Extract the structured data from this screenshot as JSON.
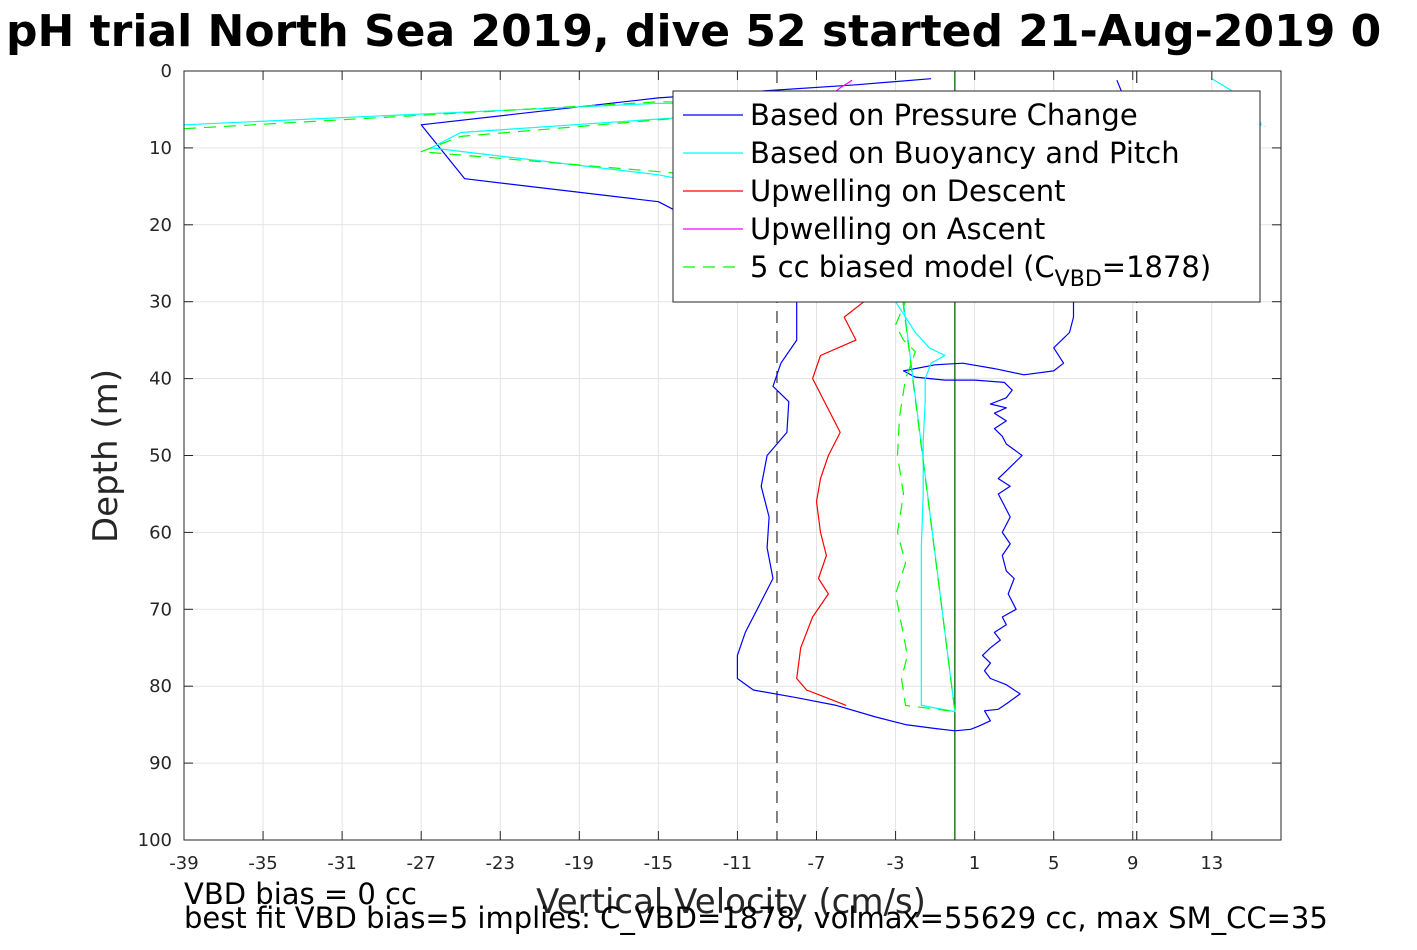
{
  "chart_data": {
    "type": "line",
    "title": "pH trial North Sea 2019, dive 52 started 21-Aug-2019 0",
    "xlabel": "Vertical Velocity (cm/s)",
    "ylabel": "Depth (m)",
    "xlim": [
      -39,
      16.5
    ],
    "ylim": [
      0,
      100
    ],
    "y_reversed": true,
    "grid": true,
    "xticks": [
      -39,
      -35,
      -31,
      -27,
      -23,
      -19,
      -15,
      -11,
      -7,
      -3,
      1,
      5,
      9,
      13
    ],
    "yticks": [
      0,
      10,
      20,
      30,
      40,
      50,
      60,
      70,
      80,
      90,
      100
    ],
    "legend_position": "top-right",
    "colors": {
      "pressure": "#0000ff",
      "buoyancy": "#00ffff",
      "descent": "#ff0000",
      "ascent": "#ff00ff",
      "model": "#00ff00",
      "zero_line": "#006400",
      "limit_lines": "#404040"
    },
    "series": [
      {
        "name": "Based on Pressure Change",
        "key": "pressure",
        "style": "solid",
        "points": [
          [
            -1.2,
            1.0
          ],
          [
            -5.0,
            1.8
          ],
          [
            -15.0,
            3.5
          ],
          [
            -27.0,
            7.0
          ],
          [
            -24.8,
            14.0
          ],
          [
            -15.0,
            17.0
          ],
          [
            -9.0,
            25.0
          ],
          [
            -8.0,
            30.0
          ],
          [
            -8.0,
            35.0
          ],
          [
            -8.8,
            38.0
          ],
          [
            -9.2,
            41.0
          ],
          [
            -8.4,
            43.0
          ],
          [
            -8.5,
            47.0
          ],
          [
            -9.5,
            50.0
          ],
          [
            -9.8,
            54.0
          ],
          [
            -9.4,
            58.0
          ],
          [
            -9.5,
            62.0
          ],
          [
            -9.2,
            66.0
          ],
          [
            -10.0,
            70.0
          ],
          [
            -10.6,
            73.0
          ],
          [
            -11.0,
            76.0
          ],
          [
            -11.0,
            79.0
          ],
          [
            -10.2,
            80.5
          ],
          [
            -8.0,
            81.5
          ],
          [
            -6.0,
            82.5
          ],
          [
            -4.0,
            84.0
          ],
          [
            -2.5,
            85.0
          ],
          [
            -1.0,
            85.5
          ],
          [
            0.0,
            85.8
          ],
          [
            0.8,
            85.6
          ],
          [
            1.2,
            85.2
          ],
          [
            1.8,
            84.5
          ],
          [
            1.5,
            83.2
          ],
          [
            2.2,
            83.0
          ],
          [
            2.6,
            82.3
          ],
          [
            3.3,
            81.0
          ],
          [
            2.6,
            79.8
          ],
          [
            1.8,
            79.0
          ],
          [
            1.5,
            78.0
          ],
          [
            1.8,
            77.0
          ],
          [
            1.4,
            76.0
          ],
          [
            1.8,
            75.0
          ],
          [
            2.3,
            74.0
          ],
          [
            2.0,
            73.0
          ],
          [
            2.6,
            72.0
          ],
          [
            2.4,
            71.0
          ],
          [
            3.1,
            70.0
          ],
          [
            2.7,
            68.0
          ],
          [
            3.0,
            66.0
          ],
          [
            2.6,
            65.0
          ],
          [
            2.4,
            63.0
          ],
          [
            2.8,
            61.5
          ],
          [
            2.4,
            60.0
          ],
          [
            2.8,
            58.0
          ],
          [
            2.4,
            56.0
          ],
          [
            2.2,
            55.0
          ],
          [
            2.8,
            54.0
          ],
          [
            2.2,
            53.0
          ],
          [
            2.6,
            52.0
          ],
          [
            3.0,
            51.0
          ],
          [
            3.4,
            50.0
          ],
          [
            2.6,
            48.5
          ],
          [
            2.4,
            47.5
          ],
          [
            2.0,
            46.5
          ],
          [
            2.6,
            45.5
          ],
          [
            2.0,
            44.5
          ],
          [
            2.6,
            43.8
          ],
          [
            1.8,
            43.3
          ],
          [
            2.6,
            42.5
          ],
          [
            2.9,
            41.5
          ],
          [
            2.5,
            40.5
          ],
          [
            1.0,
            40.2
          ],
          [
            -0.5,
            40.2
          ],
          [
            -2.0,
            39.8
          ],
          [
            -2.6,
            39.0
          ],
          [
            -1.0,
            38.2
          ],
          [
            0.4,
            38.0
          ],
          [
            2.0,
            38.7
          ],
          [
            3.5,
            39.5
          ],
          [
            5.0,
            39.0
          ],
          [
            5.5,
            38.0
          ],
          [
            5.0,
            36.0
          ],
          [
            5.8,
            34.0
          ],
          [
            6.0,
            32.0
          ],
          [
            6.0,
            30.0
          ],
          [
            6.4,
            28.0
          ],
          [
            6.8,
            25.0
          ],
          [
            7.3,
            20.0
          ],
          [
            8.0,
            15.0
          ],
          [
            8.7,
            10.0
          ],
          [
            8.8,
            5.0
          ],
          [
            8.2,
            1.2
          ]
        ]
      },
      {
        "name": "Based on Buoyancy and Pitch",
        "key": "buoyancy",
        "style": "solid",
        "points": [
          [
            -39.0,
            7.0
          ],
          [
            -15.0,
            4.2
          ],
          [
            -5.0,
            4.5
          ],
          [
            -25.0,
            8.0
          ],
          [
            -26.5,
            10.0
          ],
          [
            -15.0,
            13.5
          ],
          [
            -8.0,
            17.0
          ],
          [
            -5.0,
            20.0
          ],
          [
            -3.5,
            25.0
          ],
          [
            -3.0,
            30.0
          ],
          [
            -2.0,
            34.0
          ],
          [
            -1.3,
            36.0
          ],
          [
            -0.5,
            37.0
          ],
          [
            -1.2,
            38.0
          ],
          [
            -1.5,
            40.0
          ],
          [
            -1.5,
            43.0
          ],
          [
            -1.6,
            48.0
          ],
          [
            -1.6,
            55.0
          ],
          [
            -1.7,
            62.0
          ],
          [
            -1.7,
            70.0
          ],
          [
            -1.7,
            76.0
          ],
          [
            -1.7,
            82.5
          ],
          [
            0.0,
            83.3
          ],
          [
            -3.0,
            22.0
          ],
          [
            5.0,
            12.0
          ],
          [
            10.0,
            9.0
          ],
          [
            15.0,
            7.8
          ],
          [
            15.5,
            7.0
          ],
          [
            15.2,
            5.0
          ],
          [
            14.3,
            3.0
          ],
          [
            13.0,
            1.0
          ]
        ]
      },
      {
        "name": "Upwelling on Descent",
        "key": "descent",
        "style": "solid",
        "points": [
          [
            -3.0,
            27.0
          ],
          [
            -4.6,
            30.0
          ],
          [
            -5.6,
            32.0
          ],
          [
            -5.0,
            35.0
          ],
          [
            -6.8,
            37.0
          ],
          [
            -7.2,
            40.0
          ],
          [
            -6.4,
            44.0
          ],
          [
            -5.8,
            47.0
          ],
          [
            -6.4,
            50.0
          ],
          [
            -6.8,
            53.0
          ],
          [
            -7.0,
            56.0
          ],
          [
            -6.8,
            60.0
          ],
          [
            -6.5,
            63.0
          ],
          [
            -6.9,
            66.0
          ],
          [
            -6.4,
            68.0
          ],
          [
            -7.2,
            71.0
          ],
          [
            -7.8,
            75.0
          ],
          [
            -8.0,
            79.0
          ],
          [
            -7.5,
            80.5
          ],
          [
            -6.5,
            81.5
          ],
          [
            -5.5,
            82.5
          ]
        ]
      },
      {
        "name": "Upwelling on Ascent",
        "key": "ascent",
        "style": "solid",
        "points": [
          [
            -5.2,
            1.2
          ],
          [
            -5.8,
            2.2
          ],
          [
            -6.2,
            3.0
          ]
        ]
      },
      {
        "name": "5 cc biased model (C",
        "name_sub": "VBD",
        "name_tail": "=1878)",
        "key": "model",
        "style": "dashed",
        "points": [
          [
            -39.0,
            7.5
          ],
          [
            -15.0,
            4.0
          ],
          [
            -5.0,
            4.2
          ],
          [
            -25.0,
            8.5
          ],
          [
            -27.0,
            10.5
          ],
          [
            -14.0,
            13.3
          ],
          [
            -9.0,
            16.0
          ],
          [
            -5.0,
            20.0
          ],
          [
            -3.8,
            25.0
          ],
          [
            -2.5,
            30.0
          ],
          [
            -3.0,
            33.0
          ],
          [
            -2.6,
            35.0
          ],
          [
            -2.0,
            36.5
          ],
          [
            -2.2,
            38.0
          ],
          [
            -2.5,
            40.0
          ],
          [
            -2.8,
            45.0
          ],
          [
            -2.9,
            50.0
          ],
          [
            -2.6,
            55.0
          ],
          [
            -2.9,
            60.0
          ],
          [
            -2.5,
            64.0
          ],
          [
            -3.0,
            68.0
          ],
          [
            -2.7,
            72.0
          ],
          [
            -2.4,
            76.0
          ],
          [
            -2.7,
            79.0
          ],
          [
            -2.5,
            82.5
          ],
          [
            0.0,
            83.3
          ],
          [
            -3.0,
            22.5
          ],
          [
            5.0,
            12.5
          ],
          [
            10.0,
            9.5
          ],
          [
            15.0,
            8.0
          ],
          [
            15.7,
            7.2
          ]
        ]
      }
    ],
    "vertical_lines": [
      {
        "x": 0.0,
        "style": "solid",
        "key": "zero_line"
      },
      {
        "x": -9.0,
        "style": "dashed",
        "key": "limit_lines"
      },
      {
        "x": 9.2,
        "style": "dashed",
        "key": "limit_lines"
      }
    ]
  },
  "annotations": {
    "line1": "VBD bias = 0 cc",
    "line2": "best fit VBD bias=5 implies: C_VBD=1878, volmax=55629 cc, max SM_CC=35"
  }
}
